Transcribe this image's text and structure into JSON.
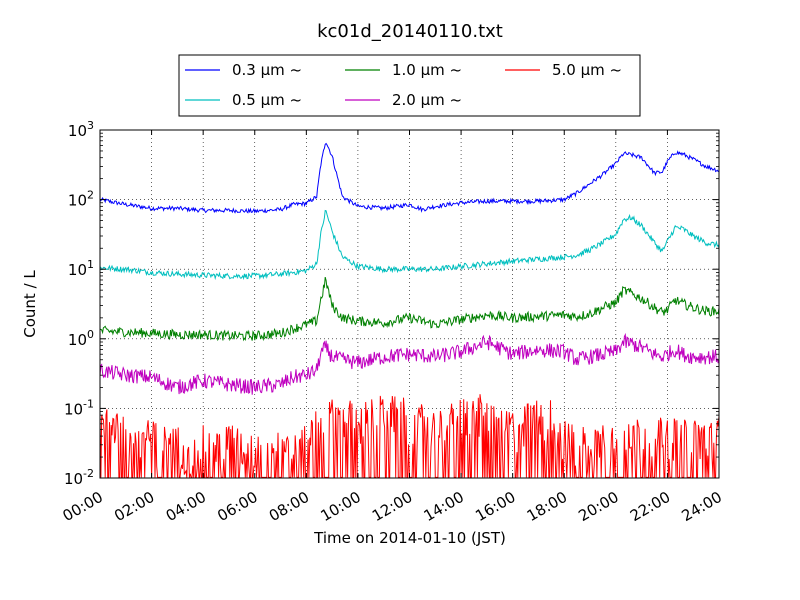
{
  "chart_data": {
    "type": "line",
    "title": "kc01d_20140110.txt",
    "xlabel": "Time on 2014-01-10 (JST)",
    "ylabel": "Count / L",
    "yscale": "log",
    "ylim": [
      0.01,
      1000
    ],
    "xlim": [
      "00:00",
      "24:00"
    ],
    "x_ticks": [
      "00:00",
      "02:00",
      "04:00",
      "06:00",
      "08:00",
      "10:00",
      "12:00",
      "14:00",
      "16:00",
      "18:00",
      "20:00",
      "22:00",
      "24:00"
    ],
    "y_ticks": [
      {
        "base": "10",
        "exp": "-2"
      },
      {
        "base": "10",
        "exp": "-1"
      },
      {
        "base": "10",
        "exp": "0"
      },
      {
        "base": "10",
        "exp": "1"
      },
      {
        "base": "10",
        "exp": "2"
      },
      {
        "base": "10",
        "exp": "3"
      }
    ],
    "grid": true,
    "legend_position": "top-center",
    "series": [
      {
        "name": "0.3 μm ~",
        "color": "#0000ff",
        "x_hours": [
          0,
          1,
          2,
          3,
          4,
          5,
          6,
          7,
          7.5,
          8,
          8.4,
          8.55,
          8.75,
          9.0,
          9.4,
          10,
          11,
          12,
          12.5,
          13,
          14,
          15,
          16,
          17,
          18,
          18.5,
          19,
          19.5,
          20,
          20.3,
          20.6,
          21,
          21.5,
          21.8,
          22,
          22.3,
          22.6,
          23,
          23.5,
          24
        ],
        "y_values": [
          100,
          85,
          75,
          75,
          70,
          70,
          68,
          72,
          85,
          88,
          110,
          300,
          700,
          420,
          110,
          80,
          75,
          85,
          72,
          80,
          90,
          95,
          95,
          95,
          100,
          125,
          170,
          230,
          330,
          460,
          440,
          400,
          240,
          250,
          350,
          480,
          450,
          380,
          300,
          260
        ]
      },
      {
        "name": "0.5 μm ~",
        "color": "#00bfbf",
        "x_hours": [
          0,
          1,
          2,
          3,
          4,
          5,
          6,
          7,
          7.5,
          8,
          8.4,
          8.55,
          8.75,
          9.0,
          9.4,
          10,
          11,
          12,
          13,
          14,
          15,
          16,
          17,
          18,
          18.5,
          19,
          19.5,
          20,
          20.3,
          20.6,
          21,
          21.5,
          21.8,
          22,
          22.3,
          22.6,
          23,
          23.5,
          24
        ],
        "y_values": [
          10.5,
          10,
          9,
          8.5,
          8.2,
          8,
          8,
          8.5,
          9,
          9.5,
          12,
          30,
          70,
          35,
          15,
          11,
          10,
          10,
          10,
          11,
          12,
          13,
          14,
          15,
          16,
          19,
          24,
          32,
          52,
          55,
          42,
          24,
          18,
          25,
          40,
          38,
          30,
          24,
          22
        ]
      },
      {
        "name": "1.0 μm ~",
        "color": "#008000",
        "x_hours": [
          0,
          1,
          2,
          3,
          4,
          5,
          6,
          7,
          7.5,
          8,
          8.4,
          8.55,
          8.75,
          9.0,
          9.4,
          10,
          11,
          12,
          13,
          14,
          15,
          16,
          17,
          18,
          18.5,
          19,
          19.5,
          20,
          20.3,
          20.6,
          21,
          21.5,
          21.8,
          22,
          22.3,
          22.6,
          23,
          23.5,
          24
        ],
        "y_values": [
          1.3,
          1.25,
          1.2,
          1.15,
          1.15,
          1.1,
          1.1,
          1.2,
          1.4,
          1.6,
          1.8,
          3.5,
          7,
          3,
          2,
          1.8,
          1.7,
          2.0,
          1.6,
          1.9,
          2.2,
          2.0,
          2.1,
          2.2,
          2.1,
          2.3,
          2.8,
          3.3,
          5,
          4.5,
          3.8,
          2.8,
          2.4,
          2.6,
          3.6,
          3.2,
          2.8,
          2.5,
          2.5
        ]
      },
      {
        "name": "2.0 μm ~",
        "color": "#bf00bf",
        "x_hours": [
          0,
          1,
          2,
          3,
          4,
          5,
          6,
          7,
          7.5,
          8,
          8.4,
          8.55,
          8.75,
          9.0,
          9.4,
          10,
          11,
          12,
          13,
          14,
          15,
          16,
          17,
          18,
          18.5,
          19,
          19.5,
          20,
          20.3,
          20.6,
          21,
          21.5,
          21.8,
          22,
          22.3,
          22.6,
          23,
          23.5,
          24
        ],
        "y_values": [
          0.35,
          0.3,
          0.28,
          0.2,
          0.25,
          0.22,
          0.2,
          0.22,
          0.28,
          0.3,
          0.35,
          0.6,
          0.75,
          0.55,
          0.5,
          0.45,
          0.55,
          0.6,
          0.55,
          0.65,
          0.9,
          0.6,
          0.7,
          0.65,
          0.5,
          0.55,
          0.6,
          0.65,
          0.9,
          0.85,
          0.75,
          0.6,
          0.55,
          0.6,
          0.7,
          0.6,
          0.55,
          0.55,
          0.55
        ]
      },
      {
        "name": "5.0 μm ~",
        "color": "#ff0000",
        "x_hours": [
          0,
          0.5,
          1,
          1.5,
          2,
          2.5,
          3,
          3.5,
          4,
          4.5,
          5,
          5.5,
          6,
          6.5,
          7,
          7.5,
          8,
          8.5,
          9,
          9.5,
          10,
          10.5,
          11,
          11.5,
          12,
          12.5,
          13,
          13.5,
          14,
          14.5,
          15,
          15.5,
          16,
          16.5,
          17,
          17.5,
          18,
          18.5,
          19,
          19.5,
          20,
          20.5,
          21,
          21.5,
          22,
          22.5,
          23,
          23.5,
          24
        ],
        "y_values": [
          0.04,
          0.05,
          0.035,
          0.03,
          0.03,
          0.025,
          0.025,
          0.02,
          0.025,
          0.02,
          0.03,
          0.02,
          0.02,
          0.02,
          0.02,
          0.02,
          0.025,
          0.05,
          0.06,
          0.06,
          0.055,
          0.06,
          0.07,
          0.065,
          0.06,
          0.05,
          0.04,
          0.05,
          0.06,
          0.08,
          0.06,
          0.05,
          0.04,
          0.05,
          0.06,
          0.06,
          0.03,
          0.025,
          0.025,
          0.03,
          0.03,
          0.04,
          0.03,
          0.03,
          0.035,
          0.03,
          0.03,
          0.03,
          0.035
        ]
      }
    ]
  }
}
